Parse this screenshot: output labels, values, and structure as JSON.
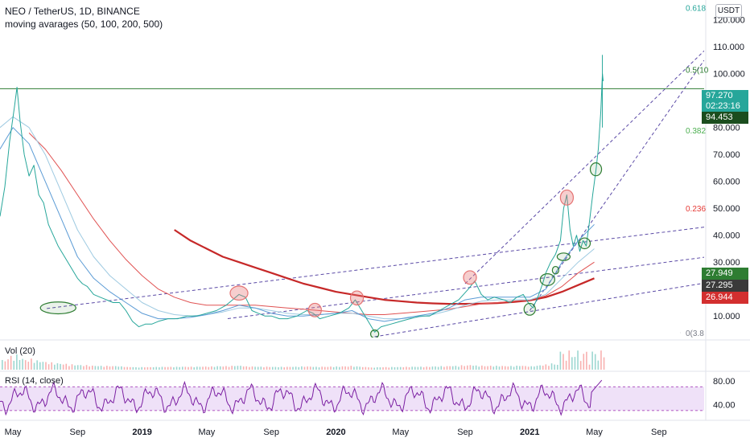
{
  "header": {
    "symbol_line": "NEO / TetherUS, 1D, BINANCE",
    "ma_line": "moving avarages (50, 100, 200, 500)",
    "currency": "USDT"
  },
  "panes": {
    "volume_label": "Vol (20)",
    "rsi_label": "RSI (14, close)"
  },
  "price_tags": {
    "last_price": "97.270",
    "countdown": "02:23:16",
    "level_high": "94.453",
    "ma_a": "27.949",
    "ma_b": "27.295",
    "ma_c": "26.944"
  },
  "colors": {
    "price": "#26a69a",
    "ma_blue": "#5b9bd5",
    "ma_lightblue": "#9ecae1",
    "ma_red": "#e05252",
    "ma_darkred": "#c62828",
    "channel": "#5b4aa6",
    "fib": "#2e7d32",
    "rsi": "#7b1fa2",
    "rsi_band": "#ead7f5",
    "circle_red": "#e57373",
    "circle_green": "#2e7d32"
  },
  "chart_data": {
    "type": "line",
    "title": "NEO / TetherUS, 1D, BINANCE",
    "price_axis": {
      "ticks": [
        10,
        20,
        30,
        40,
        50,
        60,
        70,
        80,
        90,
        100,
        110,
        120
      ],
      "tick_labels": [
        "10.000",
        "20.000",
        "30.000",
        "40.000",
        "50.000",
        "60.000",
        "70.000",
        "80.000",
        "90.000",
        "100.000",
        "110.000",
        "120.000"
      ],
      "ylim": [
        2,
        125
      ]
    },
    "time_axis": {
      "ticks": [
        "May",
        "Sep",
        "2019",
        "May",
        "Sep",
        "2020",
        "May",
        "Sep",
        "2021",
        "May",
        "Sep"
      ],
      "bold": [
        "2019",
        "2020",
        "2021"
      ],
      "tick_months": [
        0,
        4,
        8,
        12,
        16,
        20,
        24,
        28,
        32,
        36,
        40
      ],
      "xlim": [
        -0.8,
        42.8
      ]
    },
    "series": [
      {
        "name": "NEO / TetherUS",
        "color": "#26a69a",
        "points": [
          [
            -0.8,
            47
          ],
          [
            -0.5,
            58
          ],
          [
            -0.2,
            75
          ],
          [
            0.1,
            88
          ],
          [
            0.25,
            95
          ],
          [
            0.45,
            82
          ],
          [
            0.7,
            70
          ],
          [
            1.0,
            62
          ],
          [
            1.3,
            66
          ],
          [
            1.6,
            55
          ],
          [
            1.9,
            52
          ],
          [
            2.2,
            44
          ],
          [
            2.5,
            40
          ],
          [
            2.8,
            36
          ],
          [
            3.1,
            33
          ],
          [
            3.4,
            30
          ],
          [
            3.7,
            27
          ],
          [
            4.0,
            24
          ],
          [
            4.3,
            22
          ],
          [
            4.6,
            21
          ],
          [
            5.0,
            18
          ],
          [
            5.4,
            17
          ],
          [
            5.8,
            16
          ],
          [
            6.2,
            15
          ],
          [
            6.6,
            15
          ],
          [
            7.0,
            12
          ],
          [
            7.4,
            8
          ],
          [
            7.8,
            6
          ],
          [
            8.2,
            7
          ],
          [
            8.6,
            7
          ],
          [
            9.0,
            8
          ],
          [
            9.6,
            9
          ],
          [
            10.2,
            9
          ],
          [
            10.8,
            10
          ],
          [
            11.4,
            10
          ],
          [
            12.0,
            11
          ],
          [
            12.6,
            12
          ],
          [
            13.2,
            14
          ],
          [
            13.6,
            16
          ],
          [
            14.0,
            18
          ],
          [
            14.4,
            17
          ],
          [
            14.8,
            12
          ],
          [
            15.2,
            11
          ],
          [
            15.6,
            10
          ],
          [
            16.0,
            10
          ],
          [
            16.5,
            9
          ],
          [
            17.0,
            9
          ],
          [
            17.6,
            10
          ],
          [
            18.2,
            12
          ],
          [
            18.6,
            11
          ],
          [
            19.0,
            9
          ],
          [
            19.6,
            10
          ],
          [
            20.2,
            11
          ],
          [
            20.8,
            13
          ],
          [
            21.2,
            16
          ],
          [
            21.6,
            12
          ],
          [
            22.0,
            8
          ],
          [
            22.4,
            4
          ],
          [
            22.8,
            6
          ],
          [
            23.4,
            7
          ],
          [
            24.0,
            8
          ],
          [
            24.6,
            9
          ],
          [
            25.2,
            10
          ],
          [
            25.8,
            10
          ],
          [
            26.4,
            12
          ],
          [
            27.0,
            14
          ],
          [
            27.6,
            16
          ],
          [
            28.2,
            20
          ],
          [
            28.6,
            23
          ],
          [
            29.0,
            18
          ],
          [
            29.4,
            16
          ],
          [
            29.8,
            17
          ],
          [
            30.4,
            16
          ],
          [
            30.8,
            15
          ],
          [
            31.2,
            17
          ],
          [
            31.6,
            18
          ],
          [
            31.9,
            15
          ],
          [
            32.2,
            13
          ],
          [
            32.5,
            17
          ],
          [
            32.8,
            22
          ],
          [
            33.0,
            26
          ],
          [
            33.3,
            30
          ],
          [
            33.6,
            33
          ],
          [
            33.9,
            38
          ],
          [
            34.1,
            50
          ],
          [
            34.3,
            55
          ],
          [
            34.5,
            42
          ],
          [
            34.7,
            36
          ],
          [
            34.9,
            40
          ],
          [
            35.1,
            34
          ],
          [
            35.3,
            38
          ],
          [
            35.5,
            36
          ],
          [
            35.7,
            45
          ],
          [
            35.9,
            55
          ],
          [
            36.1,
            64
          ],
          [
            36.25,
            72
          ],
          [
            36.4,
            86
          ],
          [
            36.5,
            100
          ],
          [
            36.55,
            97.27
          ]
        ]
      },
      {
        "name": "MA 50",
        "color": "#5b9bd5",
        "points": [
          [
            -0.8,
            72
          ],
          [
            0,
            80
          ],
          [
            1,
            74
          ],
          [
            2,
            60
          ],
          [
            3,
            46
          ],
          [
            4,
            32
          ],
          [
            5,
            24
          ],
          [
            6,
            19
          ],
          [
            7,
            15
          ],
          [
            8,
            11
          ],
          [
            9,
            9
          ],
          [
            10,
            9
          ],
          [
            11,
            9.5
          ],
          [
            12,
            10.5
          ],
          [
            13,
            12
          ],
          [
            14,
            14
          ],
          [
            15,
            13
          ],
          [
            16,
            11
          ],
          [
            17,
            10
          ],
          [
            18,
            10
          ],
          [
            19,
            10.5
          ],
          [
            20,
            11
          ],
          [
            21,
            12
          ],
          [
            22,
            9
          ],
          [
            23,
            8
          ],
          [
            24,
            9
          ],
          [
            25,
            10
          ],
          [
            26,
            11
          ],
          [
            27,
            13
          ],
          [
            28,
            16
          ],
          [
            29,
            17
          ],
          [
            30,
            17
          ],
          [
            31,
            17
          ],
          [
            32,
            17
          ],
          [
            33,
            20
          ],
          [
            34,
            30
          ],
          [
            35,
            38
          ],
          [
            36,
            44
          ]
        ]
      },
      {
        "name": "MA 100",
        "color": "#9ecae1",
        "points": [
          [
            -0.8,
            80
          ],
          [
            0,
            84
          ],
          [
            1,
            80
          ],
          [
            2,
            70
          ],
          [
            3,
            56
          ],
          [
            4,
            42
          ],
          [
            5,
            32
          ],
          [
            6,
            25
          ],
          [
            7,
            20
          ],
          [
            8,
            15
          ],
          [
            9,
            12
          ],
          [
            10,
            10.5
          ],
          [
            11,
            10
          ],
          [
            12,
            10.5
          ],
          [
            13,
            11.5
          ],
          [
            14,
            13
          ],
          [
            15,
            13
          ],
          [
            16,
            12
          ],
          [
            17,
            11
          ],
          [
            18,
            10.5
          ],
          [
            19,
            10.5
          ],
          [
            20,
            11
          ],
          [
            21,
            11
          ],
          [
            22,
            10
          ],
          [
            23,
            9
          ],
          [
            24,
            9
          ],
          [
            25,
            9.5
          ],
          [
            26,
            10.5
          ],
          [
            27,
            12
          ],
          [
            28,
            14
          ],
          [
            29,
            15.5
          ],
          [
            30,
            16
          ],
          [
            31,
            16
          ],
          [
            32,
            16
          ],
          [
            33,
            18
          ],
          [
            34,
            24
          ],
          [
            35,
            30
          ],
          [
            36,
            35
          ]
        ]
      },
      {
        "name": "MA 200",
        "color": "#e05252",
        "points": [
          [
            1,
            78
          ],
          [
            2,
            72
          ],
          [
            3,
            64
          ],
          [
            4,
            55
          ],
          [
            5,
            46
          ],
          [
            6,
            38
          ],
          [
            7,
            31
          ],
          [
            8,
            25
          ],
          [
            9,
            20
          ],
          [
            10,
            17
          ],
          [
            11,
            15
          ],
          [
            12,
            14
          ],
          [
            13,
            14
          ],
          [
            14,
            14
          ],
          [
            15,
            14
          ],
          [
            16,
            13.5
          ],
          [
            17,
            13
          ],
          [
            18,
            12.5
          ],
          [
            19,
            12
          ],
          [
            20,
            11.5
          ],
          [
            21,
            11
          ],
          [
            22,
            10.5
          ],
          [
            23,
            10.5
          ],
          [
            24,
            11
          ],
          [
            25,
            11.5
          ],
          [
            26,
            12
          ],
          [
            27,
            12.5
          ],
          [
            28,
            13.5
          ],
          [
            29,
            14.5
          ],
          [
            30,
            15
          ],
          [
            31,
            15.5
          ],
          [
            32,
            16
          ],
          [
            33,
            17.5
          ],
          [
            34,
            21
          ],
          [
            35,
            26
          ],
          [
            36,
            30
          ]
        ]
      },
      {
        "name": "MA 500",
        "color": "#c62828",
        "points": [
          [
            10,
            42
          ],
          [
            11,
            38
          ],
          [
            12,
            35
          ],
          [
            13,
            32
          ],
          [
            14,
            30
          ],
          [
            15,
            28
          ],
          [
            16,
            26
          ],
          [
            17,
            24
          ],
          [
            18,
            22
          ],
          [
            19,
            20.5
          ],
          [
            20,
            19
          ],
          [
            21,
            18
          ],
          [
            22,
            17
          ],
          [
            23,
            16
          ],
          [
            24,
            15.5
          ],
          [
            25,
            15
          ],
          [
            26,
            14.7
          ],
          [
            27,
            14.5
          ],
          [
            28,
            14.5
          ],
          [
            29,
            14.6
          ],
          [
            30,
            14.8
          ],
          [
            31,
            15.2
          ],
          [
            32,
            15.8
          ],
          [
            33,
            17
          ],
          [
            34,
            19
          ],
          [
            35,
            21.5
          ],
          [
            36,
            24
          ]
        ]
      }
    ],
    "channels": [
      [
        [
          2.1,
          12.8
        ],
        [
          42.8,
          43.0
        ]
      ],
      [
        [
          13.3,
          9.0
        ],
        [
          42.8,
          31.8
        ]
      ],
      [
        [
          22.4,
          2.3
        ],
        [
          42.8,
          22.2
        ]
      ],
      [
        [
          28.0,
          22.0
        ],
        [
          42.8,
          108.5
        ]
      ],
      [
        [
          32.0,
          12.0
        ],
        [
          42.8,
          105.0
        ]
      ]
    ],
    "horizontal_level": 94.453,
    "fib_levels": [
      {
        "label": "0.618",
        "value": 124.5
      },
      {
        "label": "0.5(10",
        "value": 101.5
      },
      {
        "label": "0.382",
        "value": 79.0
      },
      {
        "label": "0.236",
        "value": 50.0
      },
      {
        "label": "0(3.8",
        "value": 3.8
      }
    ],
    "circles": [
      {
        "x": 2.8,
        "y": 13.0,
        "rx_months": 1.1,
        "ry_value": 2.2,
        "kind": "green"
      },
      {
        "x": 14.0,
        "y": 18.5,
        "rx_months": 0.55,
        "ry_value": 2.6,
        "kind": "red"
      },
      {
        "x": 18.7,
        "y": 12.2,
        "rx_months": 0.4,
        "ry_value": 2.5,
        "kind": "red"
      },
      {
        "x": 21.3,
        "y": 16.7,
        "rx_months": 0.4,
        "ry_value": 2.6,
        "kind": "red"
      },
      {
        "x": 22.4,
        "y": 3.3,
        "rx_months": 0.25,
        "ry_value": 1.5,
        "kind": "green"
      },
      {
        "x": 28.3,
        "y": 24.3,
        "rx_months": 0.4,
        "ry_value": 2.5,
        "kind": "red"
      },
      {
        "x": 32.0,
        "y": 12.5,
        "rx_months": 0.35,
        "ry_value": 2.2,
        "kind": "green"
      },
      {
        "x": 33.1,
        "y": 23.5,
        "rx_months": 0.45,
        "ry_value": 2.2,
        "kind": "green"
      },
      {
        "x": 33.6,
        "y": 27.0,
        "rx_months": 0.2,
        "ry_value": 1.4,
        "kind": "green"
      },
      {
        "x": 34.1,
        "y": 32.0,
        "rx_months": 0.4,
        "ry_value": 1.4,
        "kind": "green"
      },
      {
        "x": 34.3,
        "y": 54.0,
        "rx_months": 0.4,
        "ry_value": 2.8,
        "kind": "red"
      },
      {
        "x": 35.4,
        "y": 37.0,
        "rx_months": 0.35,
        "ry_value": 2.0,
        "kind": "green"
      },
      {
        "x": 36.1,
        "y": 64.5,
        "rx_months": 0.35,
        "ry_value": 2.4,
        "kind": "green"
      }
    ],
    "rsi": {
      "ticks": [
        40,
        80
      ],
      "tick_labels": [
        "40.00",
        "80.00"
      ],
      "band": [
        30,
        70
      ],
      "ylim": [
        15,
        92
      ],
      "last": 85
    }
  }
}
